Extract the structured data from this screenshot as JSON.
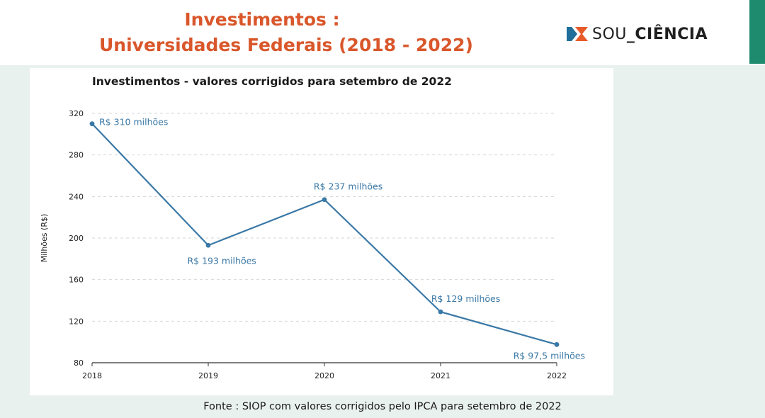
{
  "slide": {
    "title_line1": "Investimentos :",
    "title_line2": "Universidades Federais (2018 - 2022)",
    "source": "Fonte : SIOP com valores corrigidos pelo IPCA para setembro de 2022",
    "accent_color": "#1e8a6e",
    "title_color": "#d9572b"
  },
  "logo": {
    "text_light": "SOU",
    "text_bold": "_CIÊNCIA",
    "icon": "sou-ciencia-logo-icon",
    "colors": [
      "#1f6f9a",
      "#e85a2a"
    ]
  },
  "chart_data": {
    "type": "line",
    "title": "Investimentos - valores corrigidos para setembro de 2022",
    "xlabel": "",
    "ylabel": "Milhões (R$)",
    "categories": [
      "2018",
      "2019",
      "2020",
      "2021",
      "2022"
    ],
    "values": [
      310,
      193,
      237,
      129,
      97.5
    ],
    "data_labels": [
      "R$ 310 milhões",
      "R$ 193 milhões",
      "R$ 237 milhões",
      "R$ 129 milhões",
      "R$ 97,5 milhões"
    ],
    "ylim": [
      80,
      320
    ],
    "yticks": [
      "80",
      "120",
      "160",
      "200",
      "240",
      "280",
      "320"
    ],
    "grid": true,
    "line_color": "#3a78a6"
  }
}
